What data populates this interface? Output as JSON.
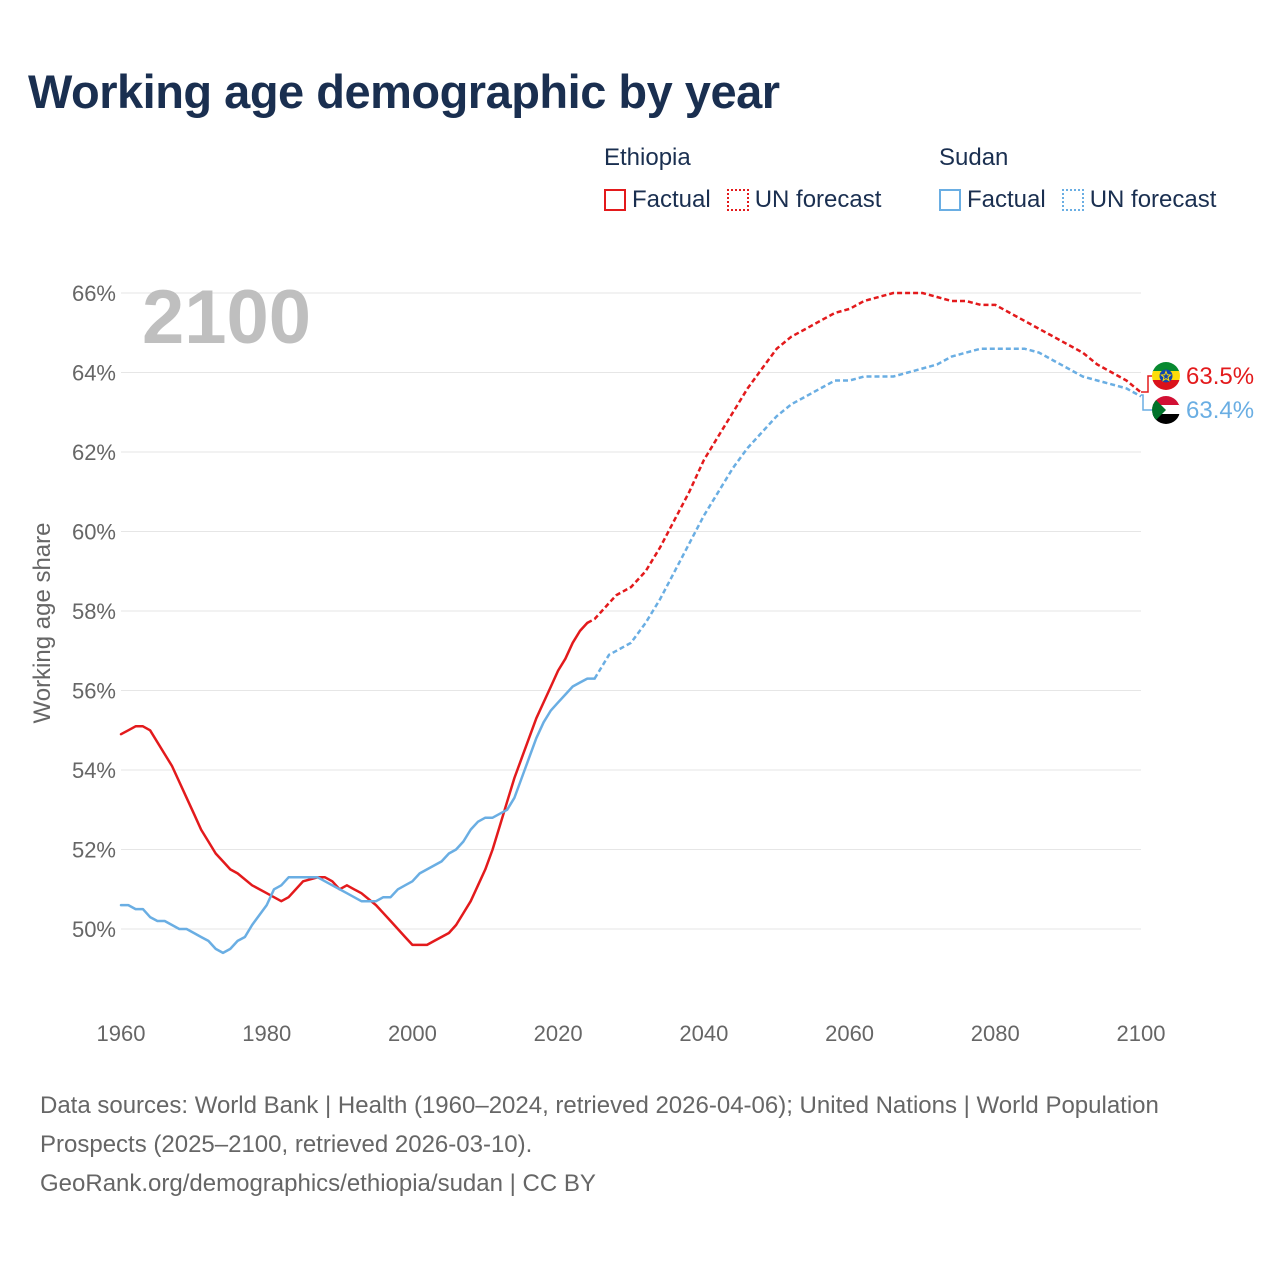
{
  "title": "Working age demographic by year",
  "legend": {
    "groups": [
      {
        "name": "Ethiopia",
        "factual_label": "Factual",
        "forecast_label": "UN forecast",
        "color": "#e31a1c"
      },
      {
        "name": "Sudan",
        "factual_label": "Factual",
        "forecast_label": "UN forecast",
        "color": "#6aaee3"
      }
    ]
  },
  "footer": {
    "sources": "Data sources: World Bank | Health (1960–2024, retrieved 2026-04-06); United Nations | World Population Prospects (2025–2100, retrieved 2026-03-10).",
    "credit": "GeoRank.org/demographics/ethiopia/sudan | CC BY"
  },
  "chart_data": {
    "type": "line",
    "year_label": "2100",
    "ylabel": "Working age share",
    "xlim": [
      1960,
      2100
    ],
    "ylim": [
      48,
      66.5
    ],
    "x_ticks": [
      1960,
      1980,
      2000,
      2020,
      2040,
      2060,
      2080,
      2100
    ],
    "x_tick_labels": [
      "1960",
      "1980",
      "2000",
      "2020",
      "2040",
      "2060",
      "2080",
      "2100"
    ],
    "y_ticks": [
      50,
      52,
      54,
      56,
      58,
      60,
      62,
      64,
      66
    ],
    "y_tick_labels": [
      "50%",
      "52%",
      "54%",
      "56%",
      "58%",
      "60%",
      "62%",
      "64%",
      "66%"
    ],
    "grid": true,
    "series": [
      {
        "name": "Ethiopia",
        "color": "#e31a1c",
        "end_label": "63.5%",
        "factual": {
          "x": [
            1960,
            1961,
            1962,
            1963,
            1964,
            1966,
            1967,
            1968,
            1969,
            1970,
            1971,
            1972,
            1973,
            1974,
            1975,
            1976,
            1978,
            1980,
            1981,
            1982,
            1983,
            1985,
            1987,
            1988,
            1989,
            1990,
            1991,
            1992,
            1993,
            1995,
            1997,
            1999,
            2000,
            2001,
            2002,
            2003,
            2005,
            2006,
            2007,
            2008,
            2009,
            2010,
            2011,
            2012,
            2013,
            2014,
            2015,
            2016,
            2017,
            2018,
            2019,
            2020,
            2021,
            2022,
            2023,
            2024
          ],
          "y": [
            54.9,
            55.0,
            55.1,
            55.1,
            55.0,
            54.4,
            54.1,
            53.7,
            53.3,
            52.9,
            52.5,
            52.2,
            51.9,
            51.7,
            51.5,
            51.4,
            51.1,
            50.9,
            50.8,
            50.7,
            50.8,
            51.2,
            51.3,
            51.3,
            51.2,
            51.0,
            51.1,
            51.0,
            50.9,
            50.6,
            50.2,
            49.8,
            49.6,
            49.6,
            49.6,
            49.7,
            49.9,
            50.1,
            50.4,
            50.7,
            51.1,
            51.5,
            52.0,
            52.6,
            53.2,
            53.8,
            54.3,
            54.8,
            55.3,
            55.7,
            56.1,
            56.5,
            56.8,
            57.2,
            57.5,
            57.7
          ]
        },
        "forecast": {
          "x": [
            2024,
            2025,
            2026,
            2027,
            2028,
            2030,
            2032,
            2034,
            2036,
            2038,
            2040,
            2042,
            2044,
            2046,
            2048,
            2050,
            2052,
            2054,
            2056,
            2058,
            2060,
            2062,
            2064,
            2066,
            2068,
            2070,
            2072,
            2074,
            2076,
            2078,
            2080,
            2082,
            2084,
            2086,
            2088,
            2090,
            2092,
            2094,
            2096,
            2098,
            2100
          ],
          "y": [
            57.7,
            57.8,
            58.0,
            58.2,
            58.4,
            58.6,
            59.0,
            59.6,
            60.3,
            61.0,
            61.8,
            62.4,
            63.0,
            63.6,
            64.1,
            64.6,
            64.9,
            65.1,
            65.3,
            65.5,
            65.6,
            65.8,
            65.9,
            66.0,
            66.0,
            66.0,
            65.9,
            65.8,
            65.8,
            65.7,
            65.7,
            65.5,
            65.3,
            65.1,
            64.9,
            64.7,
            64.5,
            64.2,
            64.0,
            63.8,
            63.5
          ]
        }
      },
      {
        "name": "Sudan",
        "color": "#6aaee3",
        "end_label": "63.4%",
        "factual": {
          "x": [
            1960,
            1961,
            1962,
            1963,
            1964,
            1965,
            1966,
            1967,
            1968,
            1969,
            1970,
            1971,
            1972,
            1973,
            1974,
            1975,
            1976,
            1977,
            1978,
            1980,
            1981,
            1982,
            1983,
            1985,
            1987,
            1989,
            1991,
            1993,
            1994,
            1995,
            1996,
            1997,
            1998,
            1999,
            2000,
            2001,
            2002,
            2003,
            2004,
            2005,
            2006,
            2007,
            2008,
            2009,
            2010,
            2011,
            2012,
            2013,
            2014,
            2015,
            2016,
            2017,
            2018,
            2019,
            2020,
            2021,
            2022,
            2023,
            2024,
            2025
          ],
          "y": [
            50.6,
            50.6,
            50.5,
            50.5,
            50.3,
            50.2,
            50.2,
            50.1,
            50.0,
            50.0,
            49.9,
            49.8,
            49.7,
            49.5,
            49.4,
            49.5,
            49.7,
            49.8,
            50.1,
            50.6,
            51.0,
            51.1,
            51.3,
            51.3,
            51.3,
            51.1,
            50.9,
            50.7,
            50.7,
            50.7,
            50.8,
            50.8,
            51.0,
            51.1,
            51.2,
            51.4,
            51.5,
            51.6,
            51.7,
            51.9,
            52.0,
            52.2,
            52.5,
            52.7,
            52.8,
            52.8,
            52.9,
            53.0,
            53.3,
            53.8,
            54.3,
            54.8,
            55.2,
            55.5,
            55.7,
            55.9,
            56.1,
            56.2,
            56.3,
            56.3
          ]
        },
        "forecast": {
          "x": [
            2025,
            2026,
            2027,
            2028,
            2030,
            2032,
            2034,
            2036,
            2038,
            2040,
            2042,
            2044,
            2046,
            2048,
            2050,
            2052,
            2054,
            2056,
            2058,
            2060,
            2062,
            2064,
            2066,
            2068,
            2070,
            2072,
            2074,
            2076,
            2078,
            2080,
            2082,
            2084,
            2086,
            2088,
            2090,
            2092,
            2094,
            2096,
            2098,
            2100
          ],
          "y": [
            56.3,
            56.6,
            56.9,
            57.0,
            57.2,
            57.7,
            58.3,
            59.0,
            59.7,
            60.4,
            61.0,
            61.6,
            62.1,
            62.5,
            62.9,
            63.2,
            63.4,
            63.6,
            63.8,
            63.8,
            63.9,
            63.9,
            63.9,
            64.0,
            64.1,
            64.2,
            64.4,
            64.5,
            64.6,
            64.6,
            64.6,
            64.6,
            64.5,
            64.3,
            64.1,
            63.9,
            63.8,
            63.7,
            63.6,
            63.4
          ]
        }
      }
    ]
  }
}
